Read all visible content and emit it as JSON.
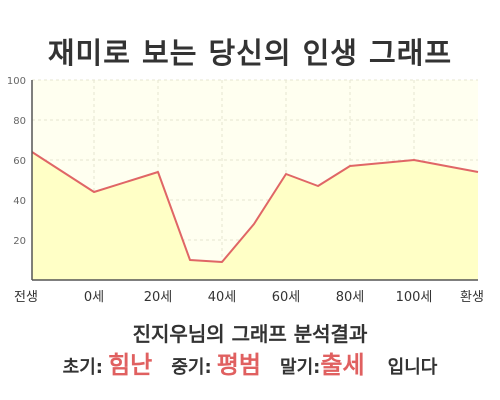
{
  "title": "재미로 보는 당신의 인생 그래프",
  "subtitle": "진지우님의 그래프 분석결과",
  "result": {
    "early_label": "초기:",
    "early_value": "힘난",
    "mid_label": "중기:",
    "mid_value": "평범",
    "late_label": "말기:",
    "late_value": "출세",
    "suffix": "입니다"
  },
  "colors": {
    "line": "#e06666",
    "fill": "#ffffc6",
    "plot_background": "#fffff0",
    "accent_text": "#e06060"
  },
  "chart_data": {
    "type": "area",
    "title": "재미로 보는 당신의 인생 그래프",
    "xlabel": "",
    "ylabel": "",
    "ylim": [
      0,
      100
    ],
    "yticks": [
      20,
      40,
      60,
      80,
      100
    ],
    "xticks": [
      "전생",
      "0세",
      "20세",
      "40세",
      "60세",
      "80세",
      "100세",
      "환생"
    ],
    "grid": true,
    "legend": "none",
    "series": [
      {
        "points": [
          {
            "x": "전생",
            "y": 64
          },
          {
            "x": "0세",
            "y": 44
          },
          {
            "x": "20세",
            "y": 54
          },
          {
            "x": "30세",
            "y": 10
          },
          {
            "x": "40세",
            "y": 9
          },
          {
            "x": "50세",
            "y": 28
          },
          {
            "x": "60세",
            "y": 53
          },
          {
            "x": "70세",
            "y": 47
          },
          {
            "x": "80세",
            "y": 57
          },
          {
            "x": "100세",
            "y": 60
          },
          {
            "x": "환생",
            "y": 54
          }
        ]
      }
    ]
  }
}
